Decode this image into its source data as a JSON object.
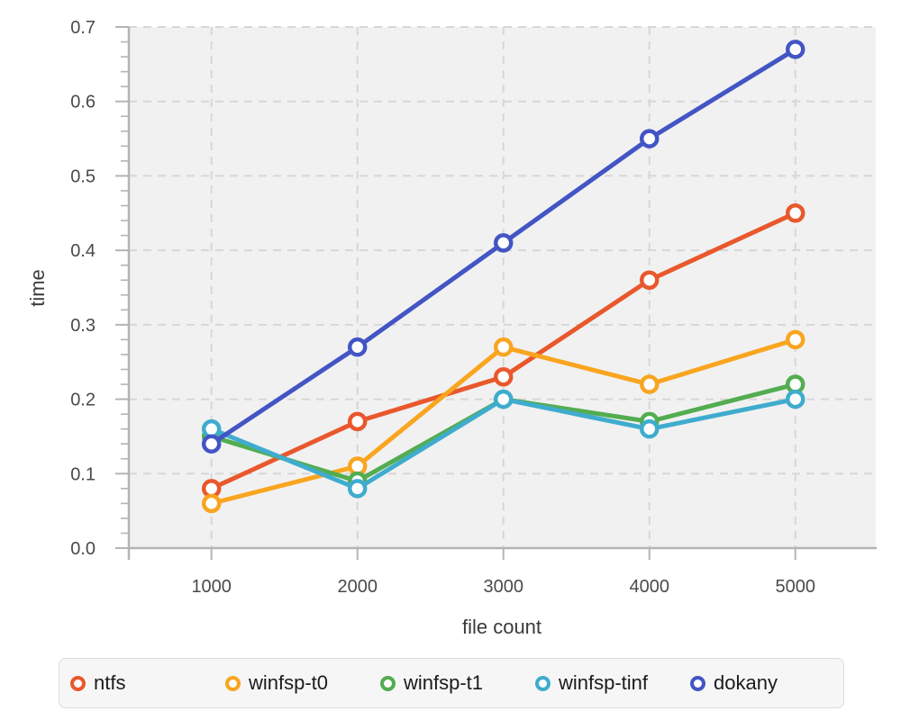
{
  "chart_data": {
    "type": "line",
    "title": "",
    "xlabel": "file count",
    "ylabel": "time",
    "x": [
      1000,
      2000,
      3000,
      4000,
      5000
    ],
    "x_tick_labels": [
      "1000",
      "2000",
      "3000",
      "4000",
      "5000"
    ],
    "y_ticks": [
      0.0,
      0.1,
      0.2,
      0.3,
      0.4,
      0.5,
      0.6,
      0.7
    ],
    "y_tick_labels": [
      "0.0",
      "0.1",
      "0.2",
      "0.3",
      "0.4",
      "0.5",
      "0.6",
      "0.7"
    ],
    "xlim": [
      434,
      5551
    ],
    "ylim": [
      0,
      0.7
    ],
    "grid": "dashed-both",
    "legend_position": "bottom",
    "series": [
      {
        "name": "ntfs",
        "color": "#E9582C",
        "values": [
          0.08,
          0.17,
          0.23,
          0.36,
          0.45
        ]
      },
      {
        "name": "winfsp-t0",
        "color": "#F9A51F",
        "values": [
          0.06,
          0.11,
          0.27,
          0.22,
          0.28
        ]
      },
      {
        "name": "winfsp-t1",
        "color": "#53AD50",
        "values": [
          0.15,
          0.09,
          0.2,
          0.17,
          0.22
        ]
      },
      {
        "name": "winfsp-tinf",
        "color": "#3FACCE",
        "values": [
          0.16,
          0.08,
          0.2,
          0.16,
          0.2
        ]
      },
      {
        "name": "dokany",
        "color": "#4355C4",
        "values": [
          0.14,
          0.27,
          0.41,
          0.55,
          0.67
        ]
      }
    ]
  },
  "style": {
    "panel_bg": "#f1f1f2",
    "grid_color": "#d7d7d7",
    "axis_color": "#b4b4b4",
    "tick_label_color": "#4a4a4a",
    "axis_title_color": "#3a3a3a",
    "legend_bg": "#f6f6f6",
    "legend_border": "#dcdcdc",
    "legend_text_color": "#1b1b1b"
  }
}
